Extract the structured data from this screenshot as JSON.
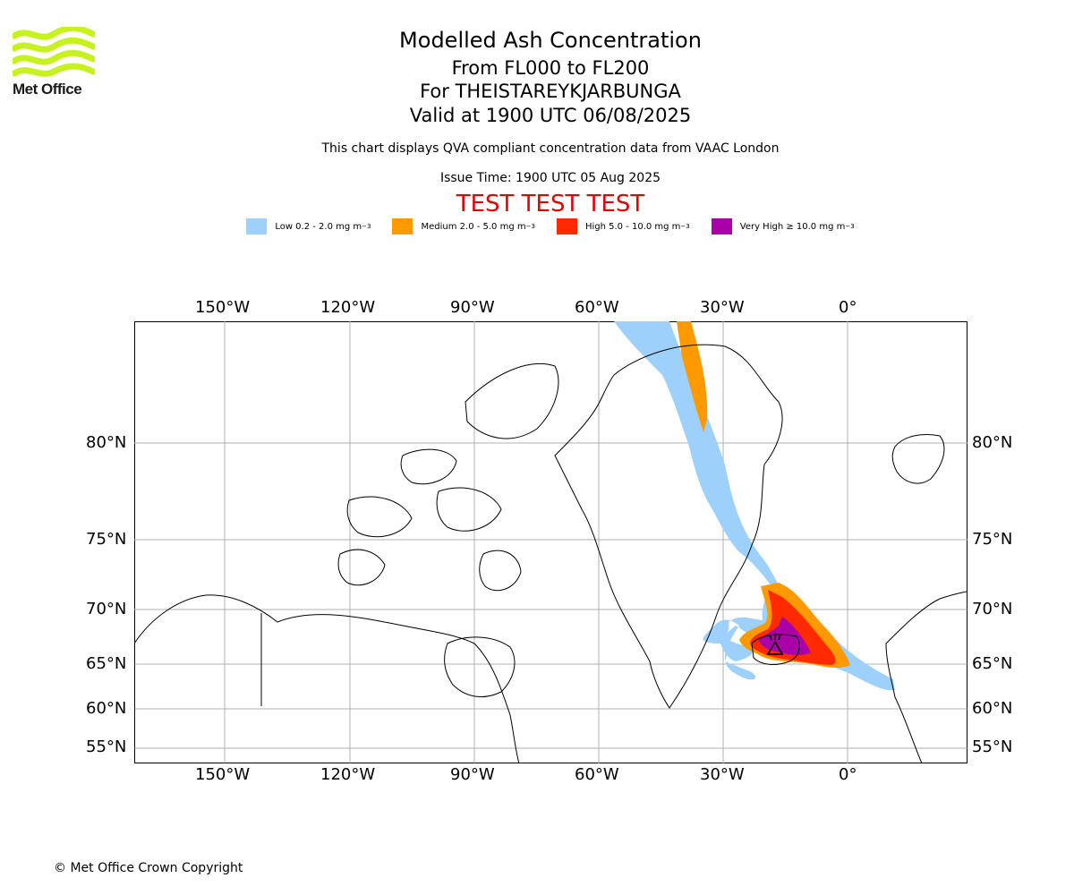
{
  "brand": {
    "name": "Met Office",
    "logo_color": "#c8f21f"
  },
  "header": {
    "title": "Modelled Ash Concentration",
    "levels": "From FL000 to FL200",
    "volcano": "For THEISTAREYKJARBUNGA",
    "valid": "Valid at 1900 UTC 06/08/2025",
    "note": "This chart displays QVA compliant concentration data from VAAC London",
    "issue": "Issue Time: 1900 UTC 05 Aug 2025",
    "test_banner": "TEST TEST TEST",
    "test_color": "#e00000"
  },
  "legend": [
    {
      "label": "Low 0.2 - 2.0 mg m",
      "exp": "−3",
      "color": "#9dd0fb"
    },
    {
      "label": "Medium 2.0 - 5.0 mg m",
      "exp": "−3",
      "color": "#ff9900"
    },
    {
      "label": "High 5.0 - 10.0 mg m",
      "exp": "−3",
      "color": "#ff2a00"
    },
    {
      "label": "Very High ≥ 10.0 mg m",
      "exp": "−3",
      "color": "#aa00aa"
    }
  ],
  "map": {
    "longitude_labels": [
      "150°W",
      "120°W",
      "90°W",
      "60°W",
      "30°W",
      "0°"
    ],
    "latitude_labels": [
      "80°N",
      "75°N",
      "70°N",
      "65°N",
      "60°N",
      "55°N"
    ],
    "grid": true,
    "volcano_marker": "volcano-symbol"
  },
  "footer": {
    "copyright": "© Met Office Crown Copyright"
  }
}
